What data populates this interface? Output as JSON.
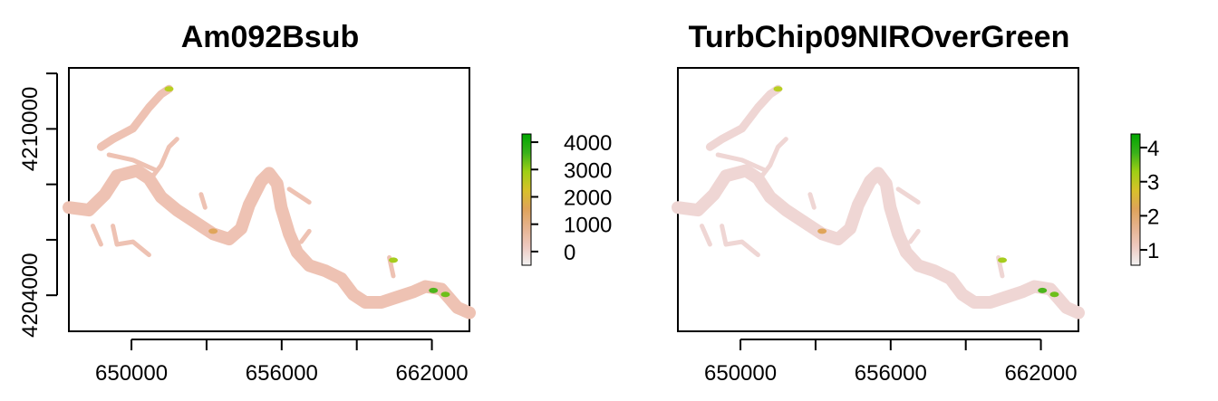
{
  "colors": {
    "ramp": [
      "#f2f2f2",
      "#eec9c0",
      "#e6b38f",
      "#dfa35a",
      "#d8c12a",
      "#9ecf14",
      "#39b11a",
      "#00a600"
    ],
    "water_fill": "#eec2b3",
    "water_fill_right": "#efd6d4"
  },
  "chart_data": [
    {
      "type": "heatmap",
      "title": "Am092Bsub",
      "xlabel": "",
      "ylabel": "",
      "xlim": [
        647500,
        663500
      ],
      "ylim": [
        4202700,
        4212200
      ],
      "x_ticks": [
        650000,
        653000,
        656000,
        659000,
        662000
      ],
      "x_tick_labels": [
        "650000",
        "656000",
        "662000"
      ],
      "x_tick_label_values": [
        650000,
        656000,
        662000
      ],
      "y_ticks": [
        4204000,
        4206000,
        4208000,
        4210000,
        4212000
      ],
      "y_tick_labels": [
        "4204000",
        "4210000"
      ],
      "y_tick_label_values": [
        4204000,
        4210000
      ],
      "legend": {
        "range": [
          -500,
          4300
        ],
        "ticks": [
          0,
          1000,
          2000,
          3000,
          4000
        ],
        "tick_labels": [
          "0",
          "1000",
          "2000",
          "3000",
          "4000"
        ]
      }
    },
    {
      "type": "heatmap",
      "title": "TurbChip09NIROverGreen",
      "xlabel": "",
      "ylabel": "",
      "xlim": [
        647500,
        663500
      ],
      "ylim": [
        4202700,
        4212200
      ],
      "x_ticks": [
        650000,
        653000,
        656000,
        659000,
        662000
      ],
      "x_tick_labels": [
        "650000",
        "656000",
        "662000"
      ],
      "x_tick_label_values": [
        650000,
        656000,
        662000
      ],
      "y_ticks": [],
      "y_tick_labels": [],
      "legend": {
        "range": [
          0.55,
          4.4
        ],
        "ticks": [
          1,
          2,
          3,
          4
        ],
        "tick_labels": [
          "1",
          "2",
          "3",
          "4"
        ]
      }
    }
  ]
}
